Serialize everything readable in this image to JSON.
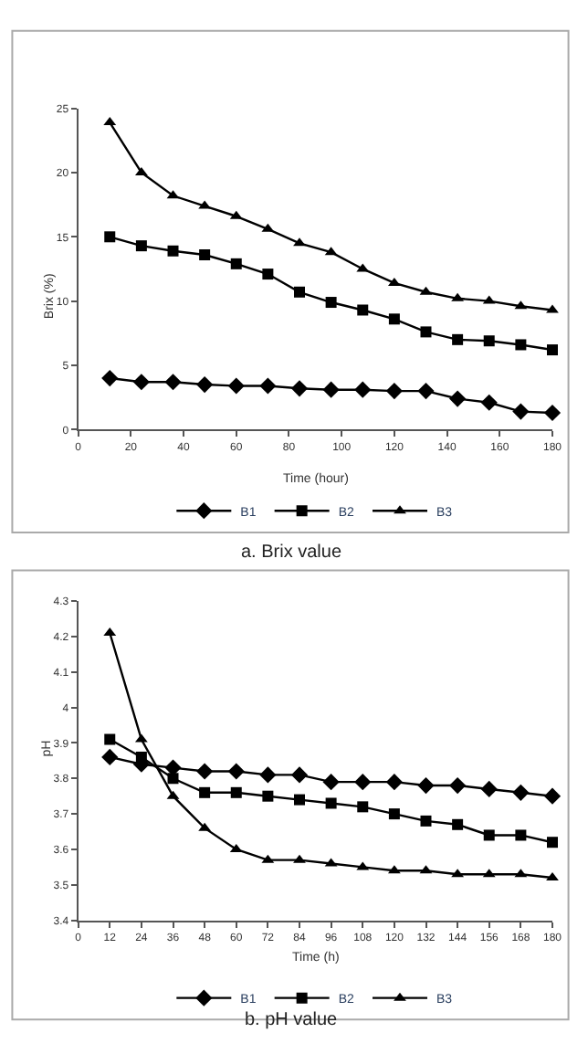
{
  "chart_data": [
    {
      "type": "line",
      "title": "a. Brix value",
      "xlabel": "Time (hour)",
      "ylabel": "Brix (%)",
      "x": [
        12,
        24,
        36,
        48,
        60,
        72,
        84,
        96,
        108,
        120,
        132,
        144,
        156,
        168,
        180
      ],
      "xlim": [
        0,
        180
      ],
      "xticks": [
        0,
        20,
        40,
        60,
        80,
        100,
        120,
        140,
        160,
        180
      ],
      "ylim": [
        0,
        25
      ],
      "yticks": [
        0,
        5,
        10,
        15,
        20,
        25
      ],
      "legend": "bottom",
      "series": [
        {
          "name": "B1",
          "color": "#000000",
          "marker": "diamond",
          "values": [
            4.0,
            3.7,
            3.7,
            3.5,
            3.4,
            3.4,
            3.2,
            3.1,
            3.1,
            3.0,
            3.0,
            2.4,
            2.1,
            1.4,
            1.3
          ]
        },
        {
          "name": "B2",
          "color": "#000000",
          "marker": "square",
          "values": [
            15.0,
            14.3,
            13.9,
            13.6,
            12.9,
            12.1,
            10.7,
            9.9,
            9.3,
            8.6,
            7.6,
            7.0,
            6.9,
            6.6,
            6.2
          ]
        },
        {
          "name": "B3",
          "color": "#000000",
          "marker": "triangle",
          "values": [
            23.9,
            20.0,
            18.2,
            17.4,
            16.6,
            15.6,
            14.5,
            13.8,
            12.5,
            11.4,
            10.7,
            10.2,
            10.0,
            9.6,
            9.3
          ]
        }
      ]
    },
    {
      "type": "line",
      "title": "b. pH value",
      "xlabel": "Time (h)",
      "ylabel": "pH",
      "x": [
        12,
        24,
        36,
        48,
        60,
        72,
        84,
        96,
        108,
        120,
        132,
        144,
        156,
        168,
        180
      ],
      "xlim": [
        0,
        180
      ],
      "xticks": [
        0,
        12,
        24,
        36,
        48,
        60,
        72,
        84,
        96,
        108,
        120,
        132,
        144,
        156,
        168,
        180
      ],
      "ylim": [
        3.4,
        4.3
      ],
      "yticks": [
        3.4,
        3.5,
        3.6,
        3.7,
        3.8,
        3.9,
        4,
        4.1,
        4.2,
        4.3
      ],
      "legend": "bottom",
      "series": [
        {
          "name": "B1",
          "color": "#000000",
          "marker": "diamond",
          "values": [
            3.86,
            3.84,
            3.83,
            3.82,
            3.82,
            3.81,
            3.81,
            3.79,
            3.79,
            3.79,
            3.78,
            3.78,
            3.77,
            3.76,
            3.75
          ]
        },
        {
          "name": "B2",
          "color": "#000000",
          "marker": "square",
          "values": [
            3.91,
            3.86,
            3.8,
            3.76,
            3.76,
            3.75,
            3.74,
            3.73,
            3.72,
            3.7,
            3.68,
            3.67,
            3.64,
            3.64,
            3.62
          ]
        },
        {
          "name": "B3",
          "color": "#000000",
          "marker": "triangle",
          "values": [
            4.21,
            3.91,
            3.75,
            3.66,
            3.6,
            3.57,
            3.57,
            3.56,
            3.55,
            3.54,
            3.54,
            3.53,
            3.53,
            3.53,
            3.52
          ]
        }
      ]
    }
  ]
}
